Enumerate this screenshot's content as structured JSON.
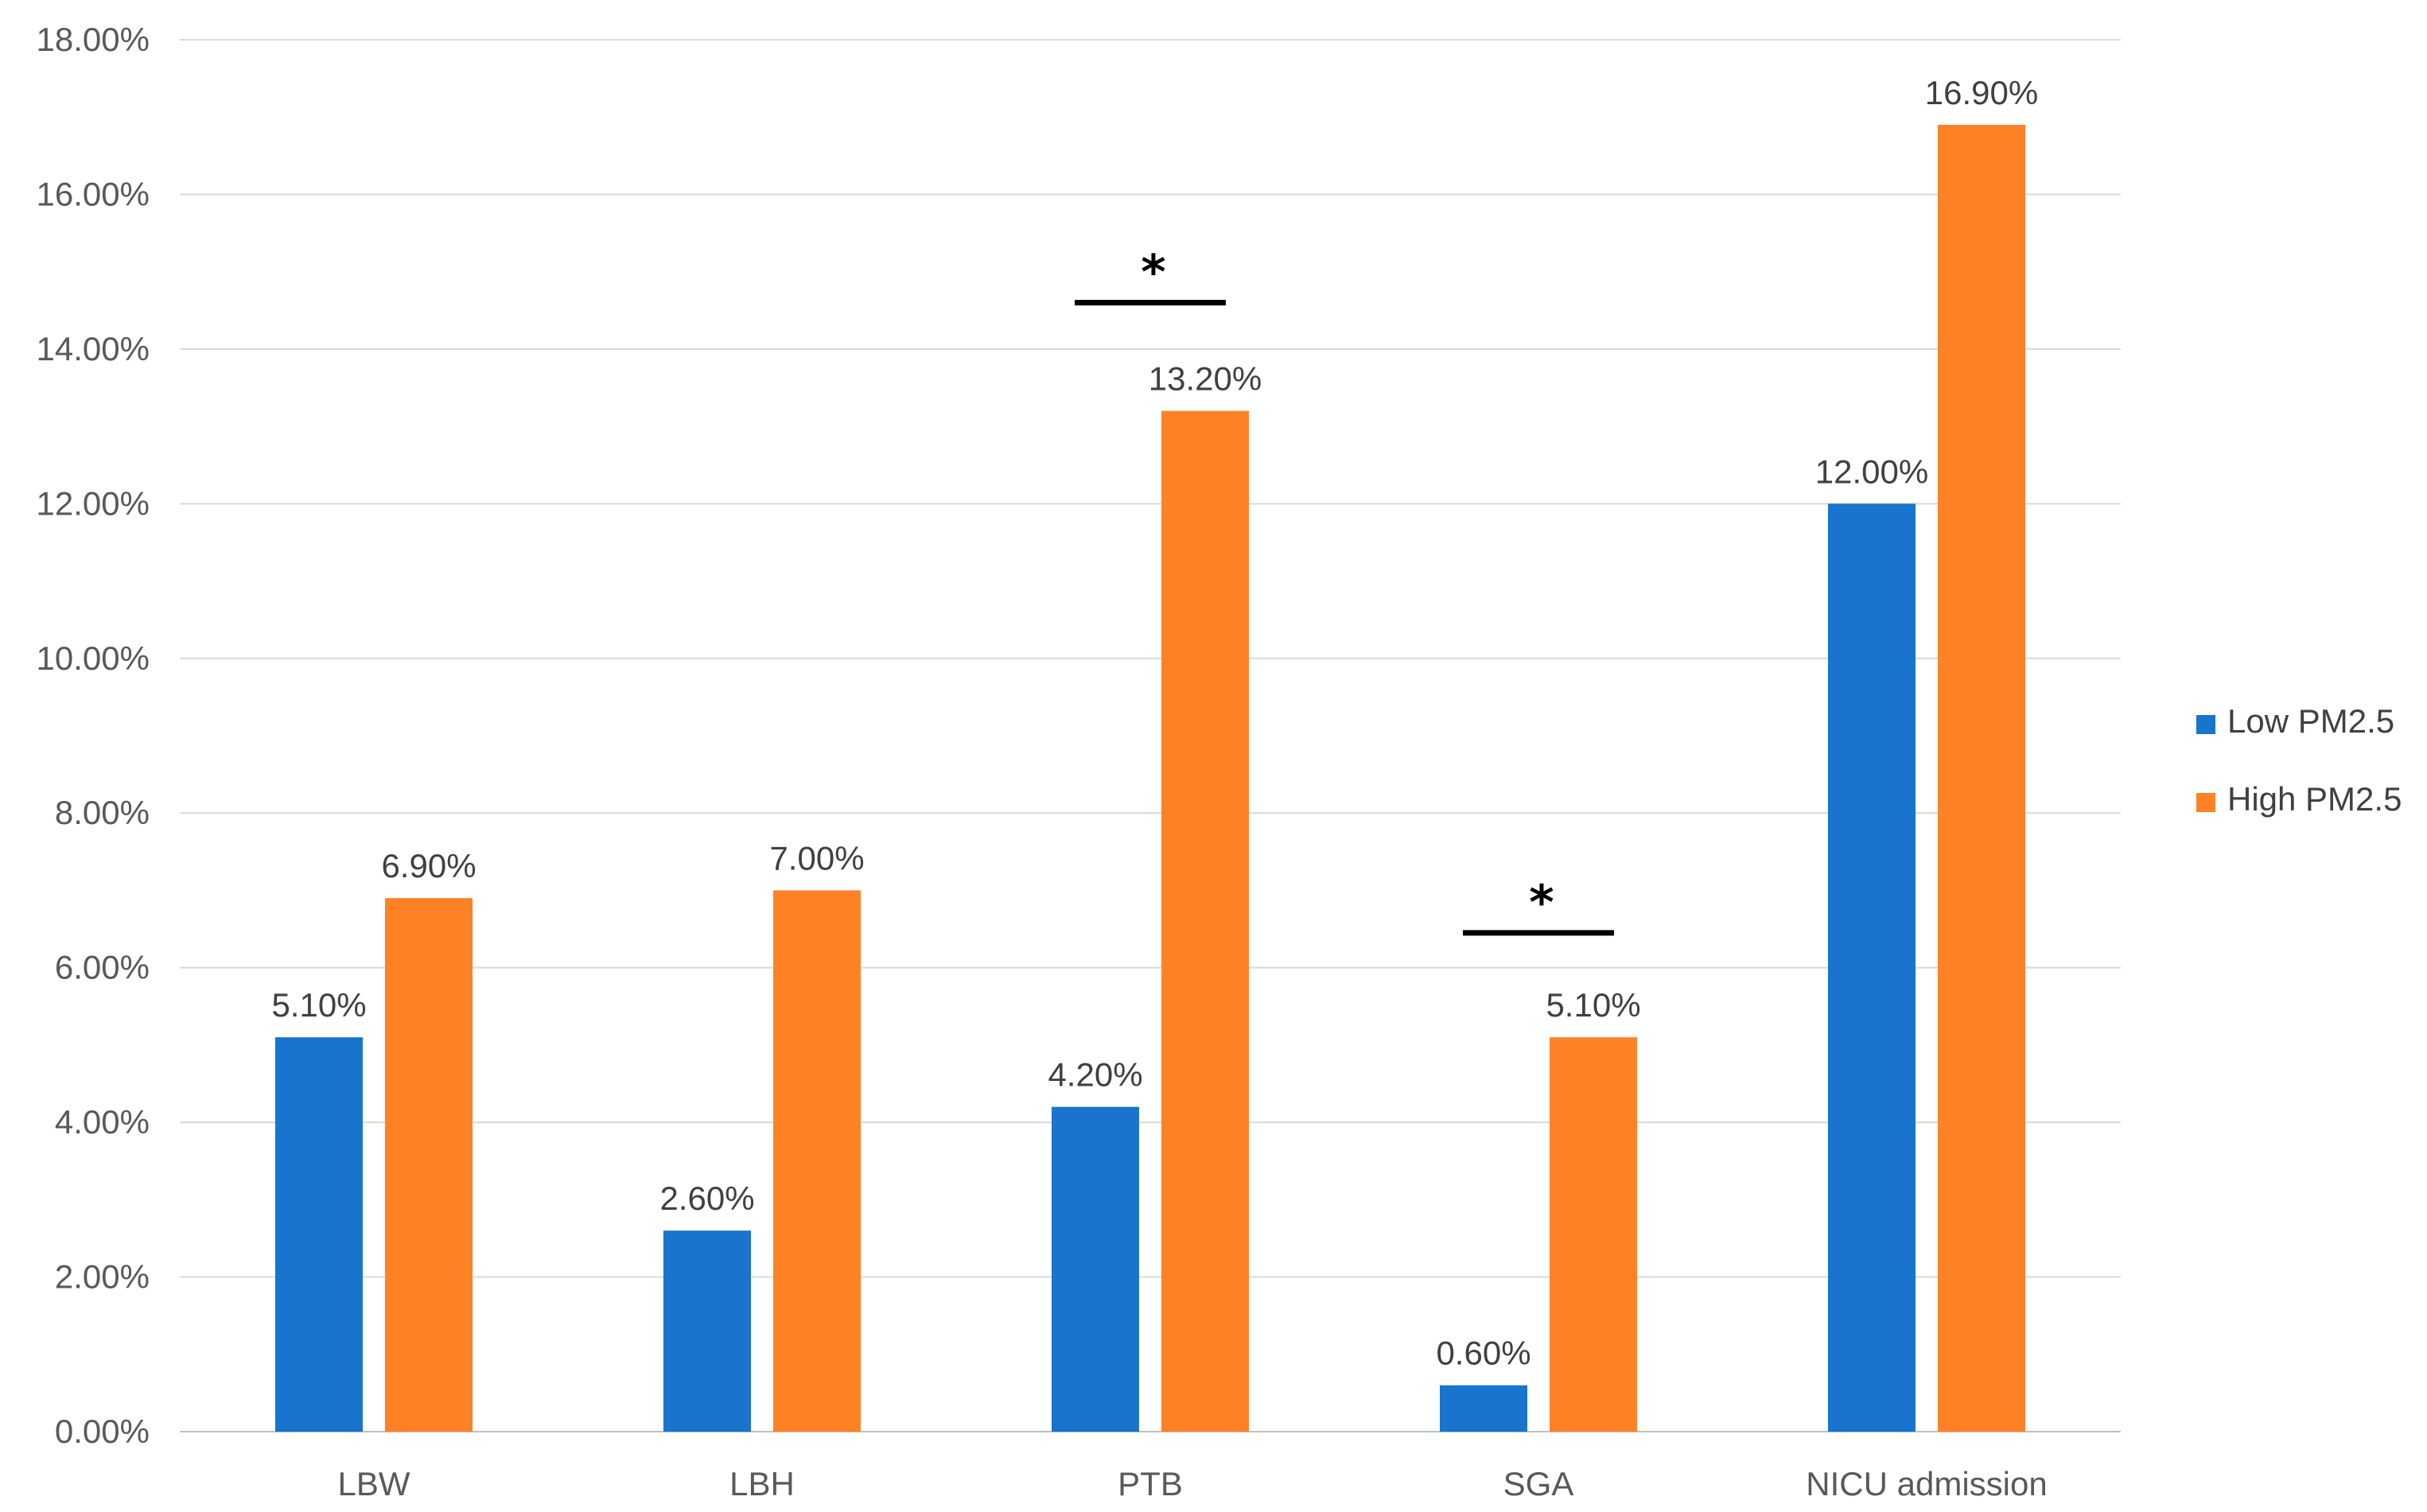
{
  "chart_data": {
    "type": "bar",
    "categories": [
      "LBW",
      "LBH",
      "PTB",
      "SGA",
      "NICU admission"
    ],
    "series": [
      {
        "name": "Low PM2.5",
        "color": "#1874CD",
        "values": [
          5.1,
          2.6,
          4.2,
          0.6,
          12.0
        ],
        "labels": [
          "5.10%",
          "2.60%",
          "4.20%",
          "0.60%",
          "12.00%"
        ]
      },
      {
        "name": "High PM2.5",
        "color": "#FF8126",
        "values": [
          6.9,
          7.0,
          13.2,
          5.1,
          16.9
        ],
        "labels": [
          "6.90%",
          "7.00%",
          "13.20%",
          "5.10%",
          "16.90%"
        ]
      }
    ],
    "ylim": [
      0,
      18
    ],
    "yticks": [
      "0.00%",
      "2.00%",
      "4.00%",
      "6.00%",
      "8.00%",
      "10.00%",
      "12.00%",
      "14.00%",
      "16.00%",
      "18.00%"
    ],
    "grid": true,
    "legend_position": "right",
    "significance": [
      {
        "category": "PTB",
        "mark": "*",
        "y": 14.6
      },
      {
        "category": "SGA",
        "mark": "*",
        "y": 6.45
      }
    ]
  }
}
